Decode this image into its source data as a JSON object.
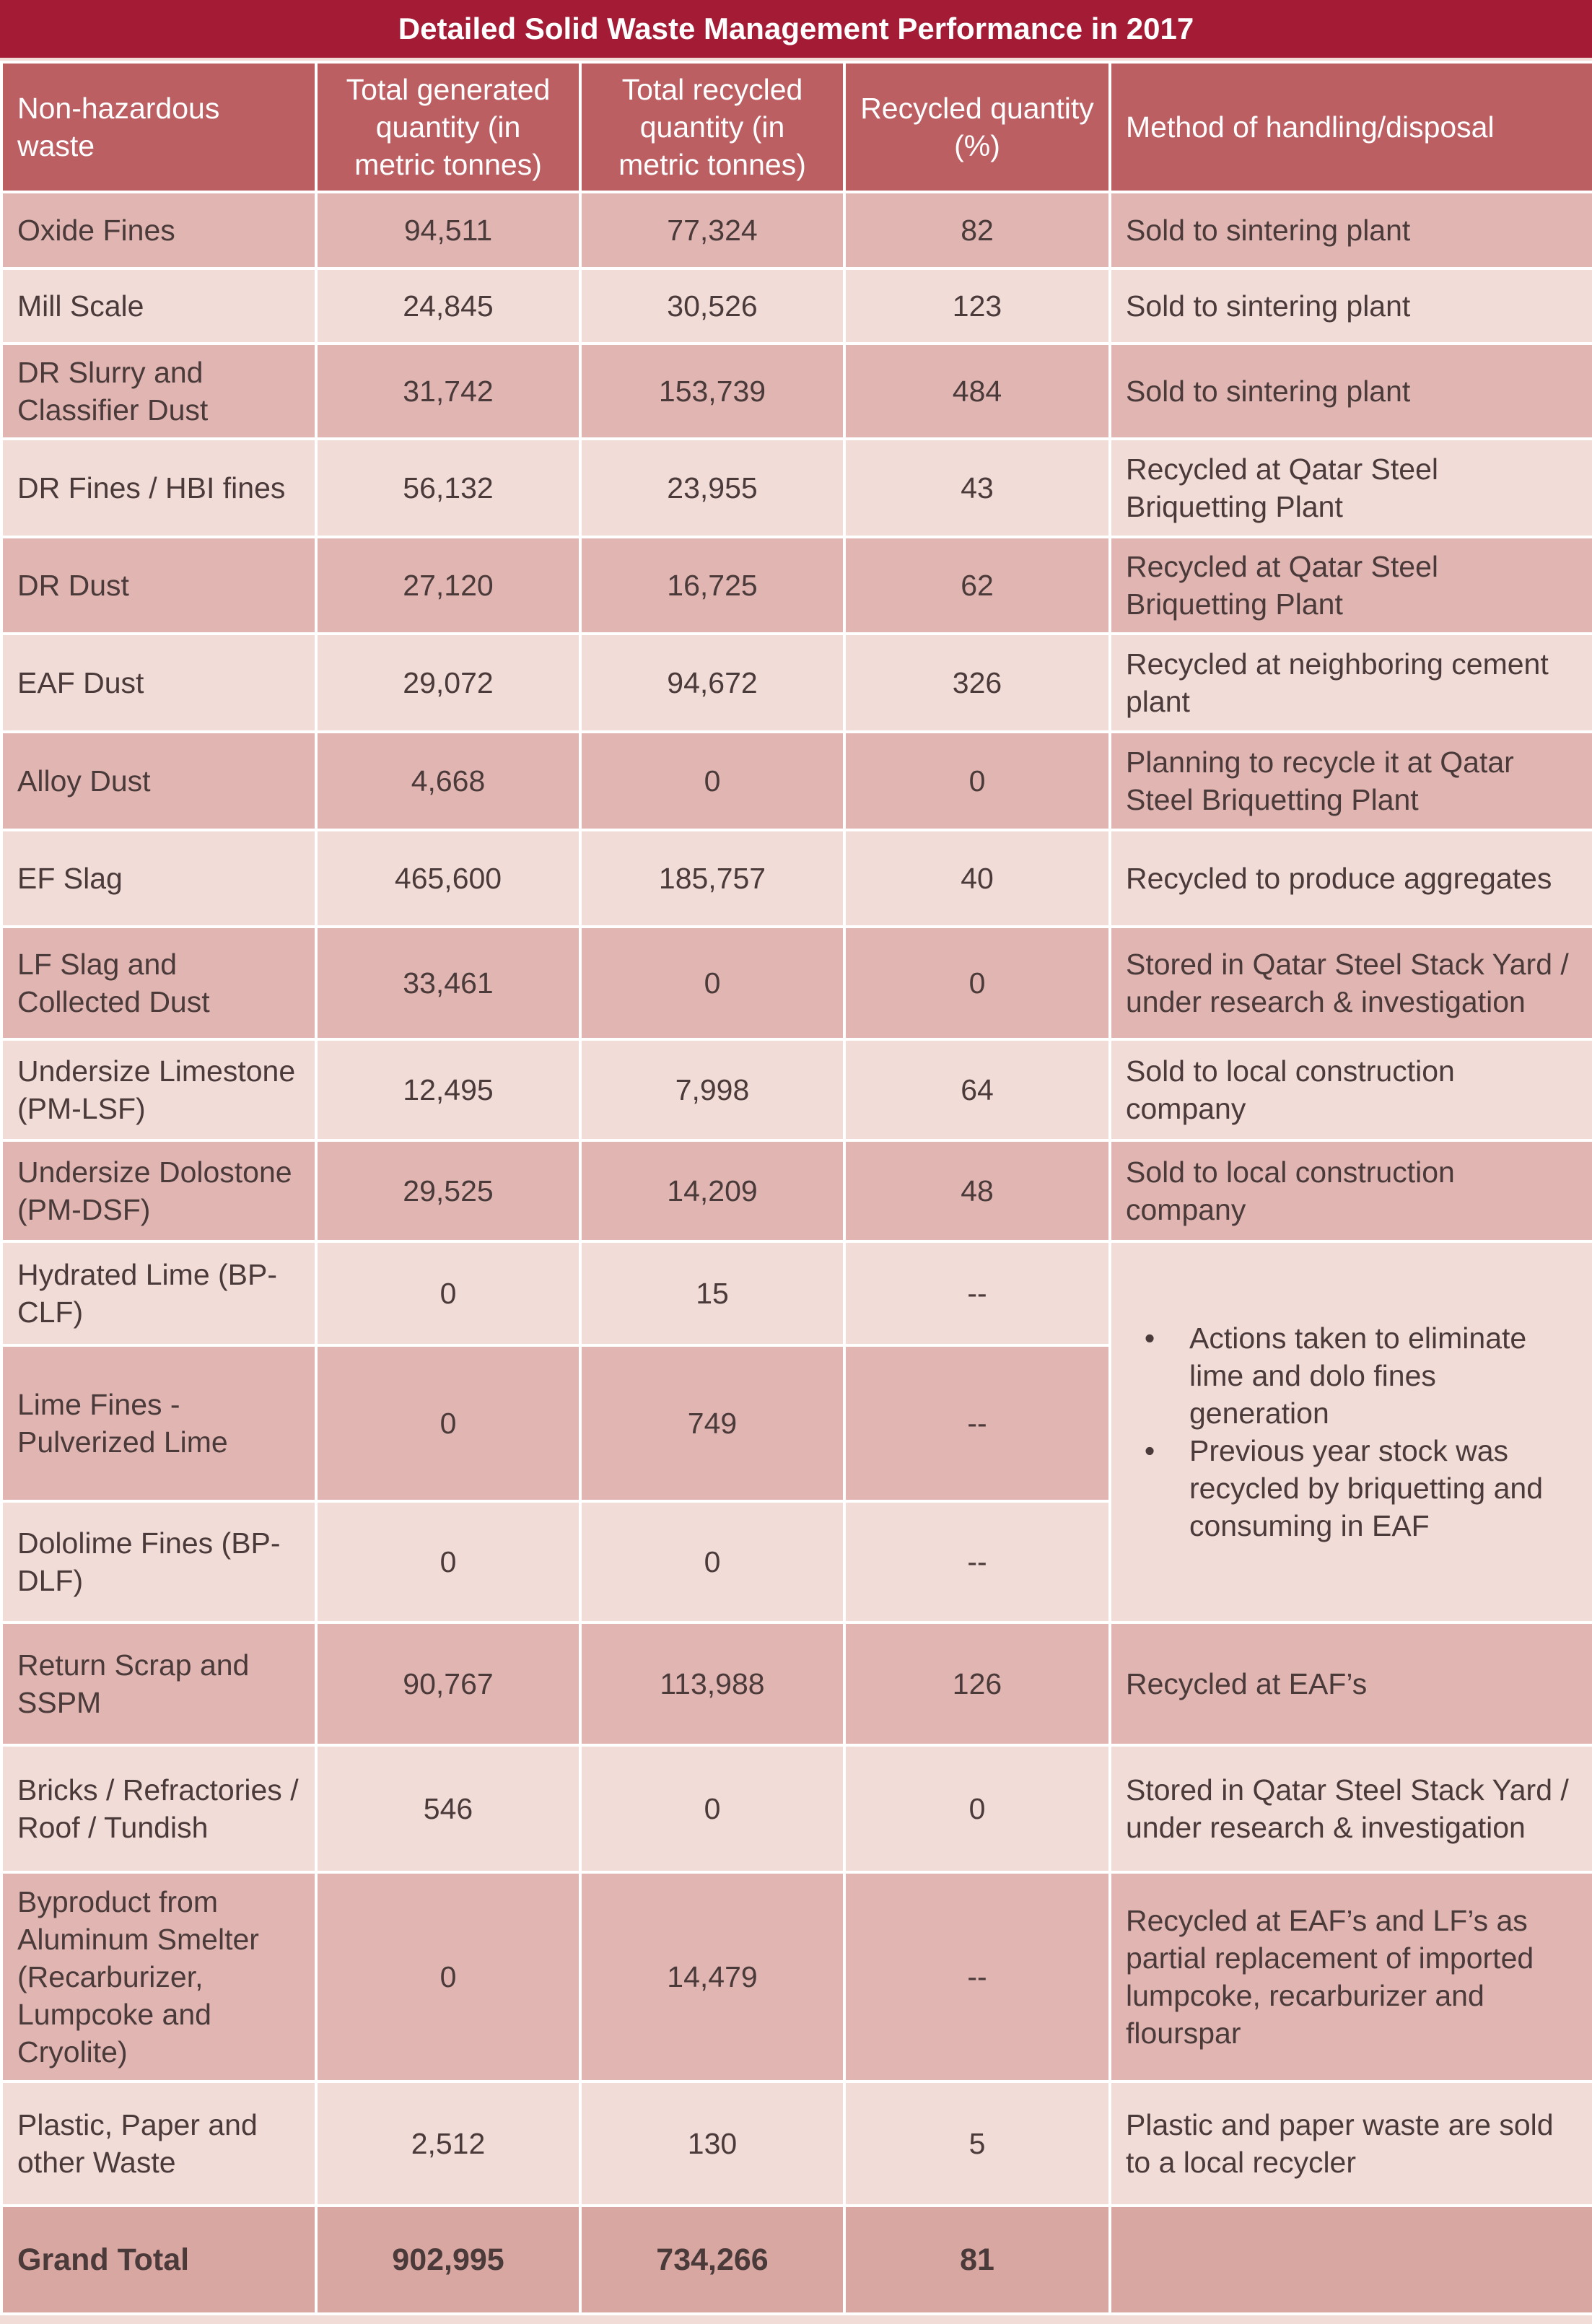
{
  "title": "Detailed Solid Waste Management Performance in 2017",
  "headers": {
    "waste": "Non-hazardous waste",
    "generated": "Total generated quantity (in metric tonnes)",
    "recycled": "Total recycled quantity (in metric tonnes)",
    "percent": "Recycled quantity (%)",
    "method": "Method of handling/disposal"
  },
  "rows": [
    {
      "waste": "Oxide Fines",
      "generated": "94,511",
      "recycled": "77,324",
      "percent": "82",
      "method": "Sold to sintering plant"
    },
    {
      "waste": "Mill Scale",
      "generated": "24,845",
      "recycled": "30,526",
      "percent": "123",
      "method": "Sold to sintering plant"
    },
    {
      "waste": "DR Slurry and Classifier Dust",
      "generated": "31,742",
      "recycled": "153,739",
      "percent": "484",
      "method": "Sold to sintering plant"
    },
    {
      "waste": "DR Fines / HBI fines",
      "generated": "56,132",
      "recycled": "23,955",
      "percent": "43",
      "method": "Recycled at Qatar Steel Briquetting Plant"
    },
    {
      "waste": "DR Dust",
      "generated": "27,120",
      "recycled": "16,725",
      "percent": "62",
      "method": "Recycled at Qatar Steel Briquetting Plant"
    },
    {
      "waste": "EAF Dust",
      "generated": "29,072",
      "recycled": "94,672",
      "percent": "326",
      "method": "Recycled at neighboring cement plant"
    },
    {
      "waste": "Alloy Dust",
      "generated": "4,668",
      "recycled": "0",
      "percent": "0",
      "method": "Planning to recycle it at Qatar Steel Briquetting Plant"
    },
    {
      "waste": "EF Slag",
      "generated": "465,600",
      "recycled": "185,757",
      "percent": "40",
      "method": "Recycled to produce aggregates"
    },
    {
      "waste": "LF Slag and Collected Dust",
      "generated": "33,461",
      "recycled": "0",
      "percent": "0",
      "method": "Stored in Qatar Steel Stack Yard / under research & investigation"
    },
    {
      "waste": "Undersize Limestone (PM-LSF)",
      "generated": "12,495",
      "recycled": "7,998",
      "percent": "64",
      "method": "Sold to local construction company"
    },
    {
      "waste": "Undersize Dolostone (PM-DSF)",
      "generated": "29,525",
      "recycled": "14,209",
      "percent": "48",
      "method": "Sold to local construction company"
    },
    {
      "waste": "Hydrated Lime (BP-CLF)",
      "generated": "0",
      "recycled": "15",
      "percent": "--"
    },
    {
      "waste": "Lime Fines - Pulverized Lime",
      "generated": "0",
      "recycled": "749",
      "percent": "--"
    },
    {
      "waste": "Dololime Fines (BP-DLF)",
      "generated": "0",
      "recycled": "0",
      "percent": "--"
    },
    {
      "waste": "Return Scrap and SSPM",
      "generated": "90,767",
      "recycled": "113,988",
      "percent": "126",
      "method": "Recycled at EAF’s"
    },
    {
      "waste": "Bricks / Refractories / Roof / Tundish",
      "generated": "546",
      "recycled": "0",
      "percent": "0",
      "method": "Stored in Qatar Steel Stack Yard / under research & investigation"
    },
    {
      "waste": "Byproduct from Aluminum Smelter (Recarburizer, Lumpcoke and Cryolite)",
      "generated": "0",
      "recycled": "14,479",
      "percent": "--",
      "method": "Recycled at EAF’s and LF’s as partial replacement of imported lumpcoke, recarburizer and flourspar"
    },
    {
      "waste": "Plastic, Paper and other Waste",
      "generated": "2,512",
      "recycled": "130",
      "percent": "5",
      "method": "Plastic and paper waste are sold to a local recycler"
    }
  ],
  "lime_note": {
    "bullet_glyph": "•",
    "bullets": [
      "Actions taken to eliminate lime and dolo fines generation",
      "Previous year stock was recycled by briquetting and consuming in EAF"
    ]
  },
  "total": {
    "label": "Grand Total",
    "generated": "902,995",
    "recycled": "734,266",
    "percent": "81",
    "method": ""
  },
  "colors": {
    "title_bg": "#a31b34",
    "header_bg": "#bb5f63",
    "row_dark": "#e1b6b2",
    "row_light": "#f2dcd8",
    "total_bg": "#d9a7a2"
  }
}
